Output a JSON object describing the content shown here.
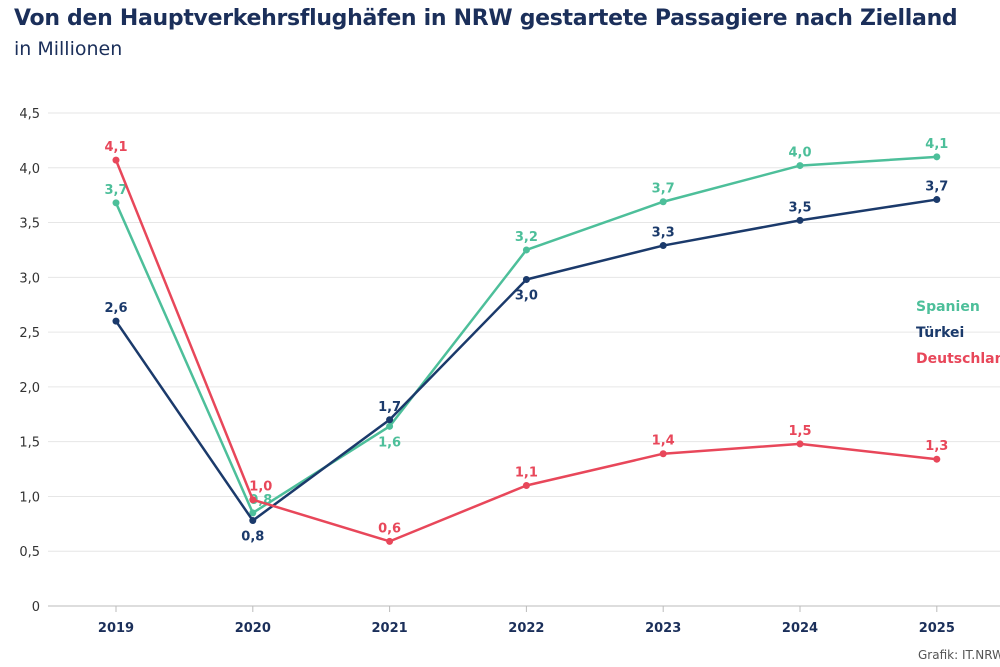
{
  "chart_data": {
    "type": "line",
    "title": "Von den Hauptverkehrsflughäfen in NRW gestartete Passagiere nach Zielland",
    "subtitle": "in Millionen",
    "categories": [
      "2019",
      "2020",
      "2021",
      "2022",
      "2023",
      "2024",
      "2025"
    ],
    "ylim": [
      0,
      4.5
    ],
    "yticks": [
      "0",
      "0,5",
      "1,0",
      "1,5",
      "2,0",
      "2,5",
      "3,0",
      "3,5",
      "4,0",
      "4,5"
    ],
    "grid": true,
    "legend_placement": "right",
    "series": [
      {
        "name": "Spanien",
        "color": "#4dbf9a",
        "values": [
          3.68,
          0.85,
          1.64,
          3.25,
          3.69,
          4.02,
          4.1
        ],
        "labels": [
          "3,7",
          "0,8",
          "1,6",
          "3,2",
          "3,7",
          "4,0",
          "4,1"
        ]
      },
      {
        "name": "Türkei",
        "color": "#1b3a6b",
        "values": [
          2.6,
          0.78,
          1.7,
          2.98,
          3.29,
          3.52,
          3.71
        ],
        "labels": [
          "2,6",
          "0,8",
          "1,7",
          "3,0",
          "3,3",
          "3,5",
          "3,7"
        ]
      },
      {
        "name": "Deutschland",
        "color": "#e8475a",
        "values": [
          4.07,
          0.97,
          0.59,
          1.1,
          1.39,
          1.48,
          1.34
        ],
        "labels": [
          "4,1",
          "1,0",
          "0,6",
          "1,1",
          "1,4",
          "1,5",
          "1,3"
        ]
      }
    ]
  },
  "source": "Grafik: IT.NRW"
}
